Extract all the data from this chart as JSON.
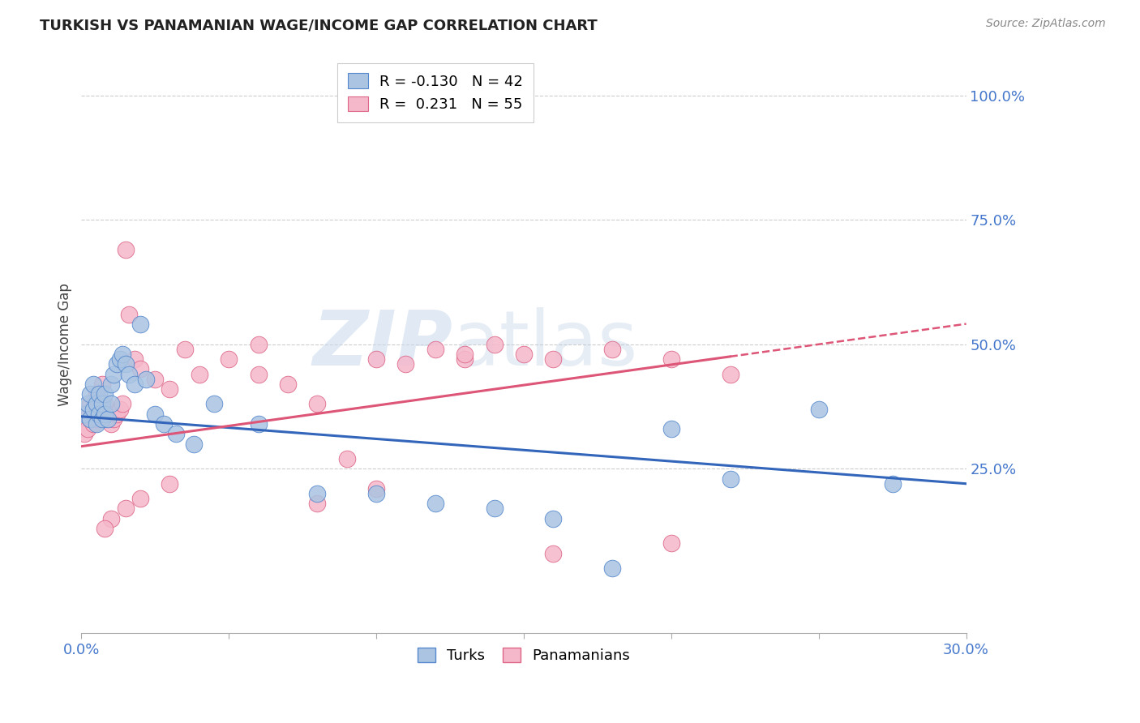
{
  "title": "TURKISH VS PANAMANIAN WAGE/INCOME GAP CORRELATION CHART",
  "source": "Source: ZipAtlas.com",
  "ylabel": "Wage/Income Gap",
  "right_yticks": [
    0.25,
    0.5,
    0.75,
    1.0
  ],
  "right_yticklabels": [
    "25.0%",
    "50.0%",
    "75.0%",
    "100.0%"
  ],
  "xmin": 0.0,
  "xmax": 0.3,
  "ymin": -0.08,
  "ymax": 1.08,
  "turks_color": "#aac4e2",
  "turks_edge": "#5588cc",
  "panamanians_color": "#f5b8cb",
  "panamanians_edge": "#dd6688",
  "trend_turks_color": "#3366bb",
  "trend_panamanians_color": "#dd5577",
  "watermark_zip": "ZIP",
  "watermark_atlas": "atlas",
  "background_color": "#ffffff",
  "turks_x": [
    0.001,
    0.002,
    0.003,
    0.003,
    0.004,
    0.004,
    0.005,
    0.005,
    0.006,
    0.006,
    0.007,
    0.007,
    0.008,
    0.008,
    0.009,
    0.01,
    0.01,
    0.011,
    0.012,
    0.013,
    0.014,
    0.015,
    0.016,
    0.018,
    0.02,
    0.022,
    0.025,
    0.028,
    0.032,
    0.038,
    0.045,
    0.06,
    0.08,
    0.1,
    0.12,
    0.14,
    0.16,
    0.18,
    0.2,
    0.22,
    0.25,
    0.275
  ],
  "turks_y": [
    0.36,
    0.38,
    0.35,
    0.4,
    0.37,
    0.42,
    0.34,
    0.38,
    0.36,
    0.4,
    0.35,
    0.38,
    0.36,
    0.4,
    0.35,
    0.42,
    0.38,
    0.44,
    0.46,
    0.47,
    0.48,
    0.46,
    0.44,
    0.42,
    0.54,
    0.43,
    0.36,
    0.34,
    0.32,
    0.3,
    0.38,
    0.34,
    0.2,
    0.2,
    0.18,
    0.17,
    0.15,
    0.05,
    0.33,
    0.23,
    0.37,
    0.22
  ],
  "panamanians_x": [
    0.001,
    0.002,
    0.002,
    0.003,
    0.003,
    0.004,
    0.004,
    0.005,
    0.005,
    0.006,
    0.006,
    0.007,
    0.007,
    0.008,
    0.008,
    0.009,
    0.01,
    0.011,
    0.012,
    0.013,
    0.014,
    0.015,
    0.016,
    0.018,
    0.02,
    0.025,
    0.03,
    0.035,
    0.04,
    0.05,
    0.06,
    0.07,
    0.08,
    0.09,
    0.1,
    0.11,
    0.12,
    0.13,
    0.14,
    0.15,
    0.06,
    0.08,
    0.1,
    0.13,
    0.16,
    0.18,
    0.2,
    0.22,
    0.03,
    0.02,
    0.015,
    0.01,
    0.008,
    0.2,
    0.16
  ],
  "panamanians_y": [
    0.32,
    0.33,
    0.36,
    0.35,
    0.38,
    0.34,
    0.37,
    0.35,
    0.4,
    0.36,
    0.39,
    0.37,
    0.42,
    0.35,
    0.38,
    0.36,
    0.34,
    0.35,
    0.36,
    0.37,
    0.38,
    0.69,
    0.56,
    0.47,
    0.45,
    0.43,
    0.41,
    0.49,
    0.44,
    0.47,
    0.44,
    0.42,
    0.38,
    0.27,
    0.47,
    0.46,
    0.49,
    0.47,
    0.5,
    0.48,
    0.5,
    0.18,
    0.21,
    0.48,
    0.47,
    0.49,
    0.47,
    0.44,
    0.22,
    0.19,
    0.17,
    0.15,
    0.13,
    0.1,
    0.08
  ],
  "turk_intercept": 0.355,
  "turk_slope": -0.45,
  "pan_intercept": 0.295,
  "pan_slope": 0.82
}
